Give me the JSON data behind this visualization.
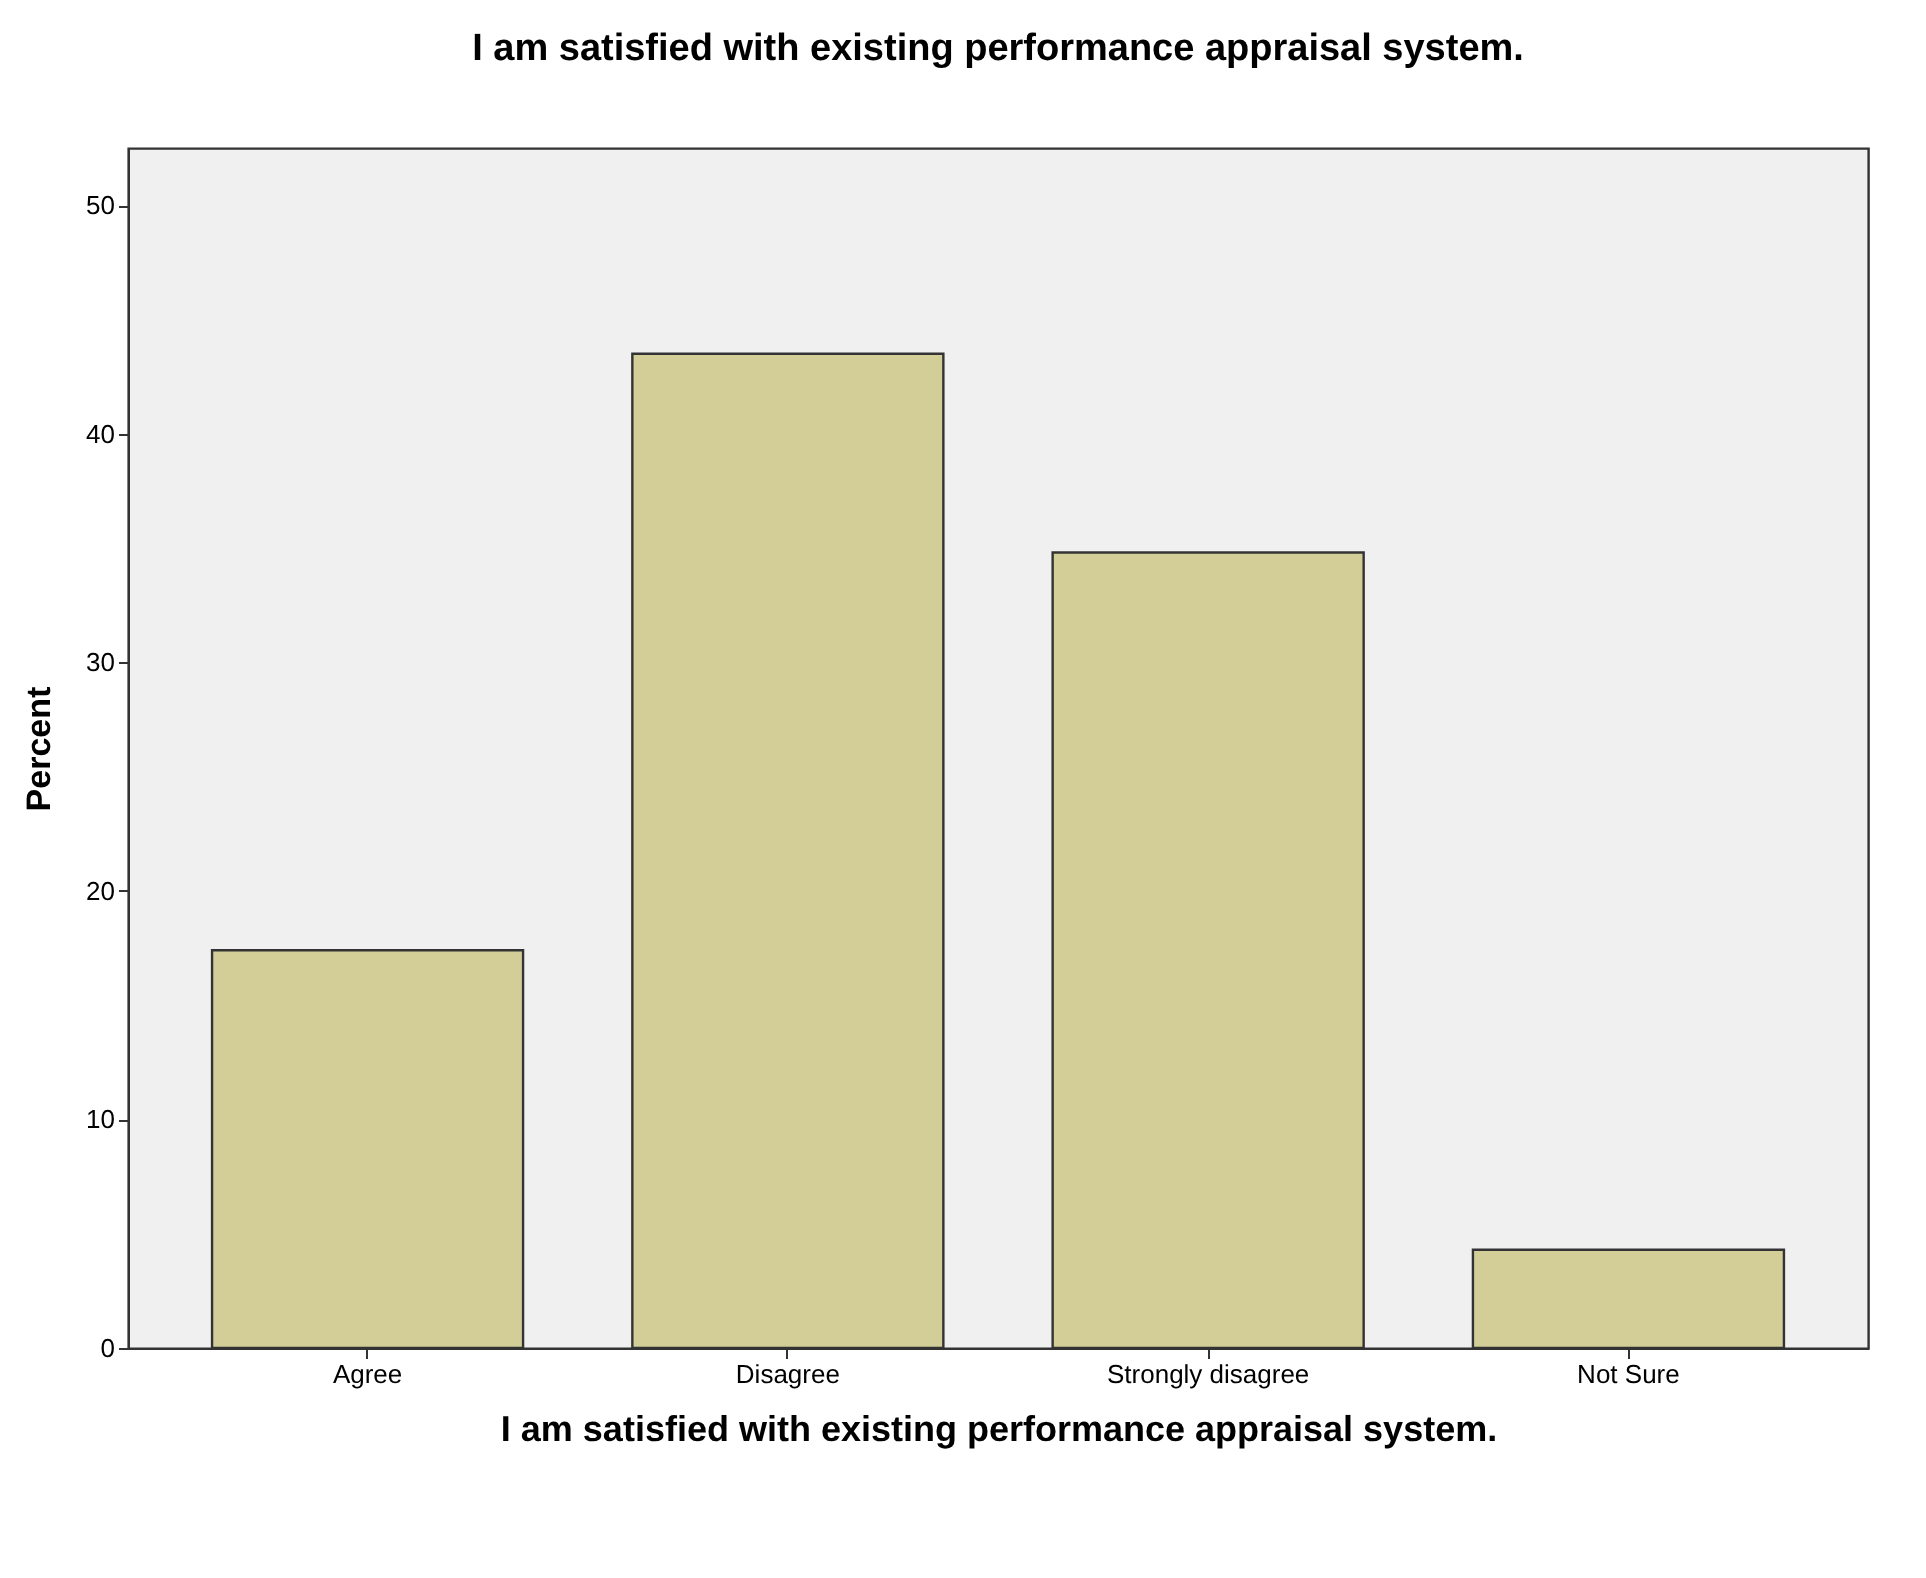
{
  "chart_data": {
    "type": "bar",
    "title": "I am satisfied with existing performance appraisal system.",
    "xlabel": "I am satisfied with existing performance appraisal system.",
    "ylabel": "Percent",
    "categories": [
      "Agree",
      "Disagree",
      "Strongly disagree",
      "Not Sure"
    ],
    "values": [
      17.4,
      43.5,
      34.8,
      4.3
    ],
    "color": "#d3ce97",
    "ylim": [
      0,
      52.5
    ],
    "yticks": [
      0,
      10,
      20,
      30,
      40,
      50
    ],
    "grid": false
  }
}
